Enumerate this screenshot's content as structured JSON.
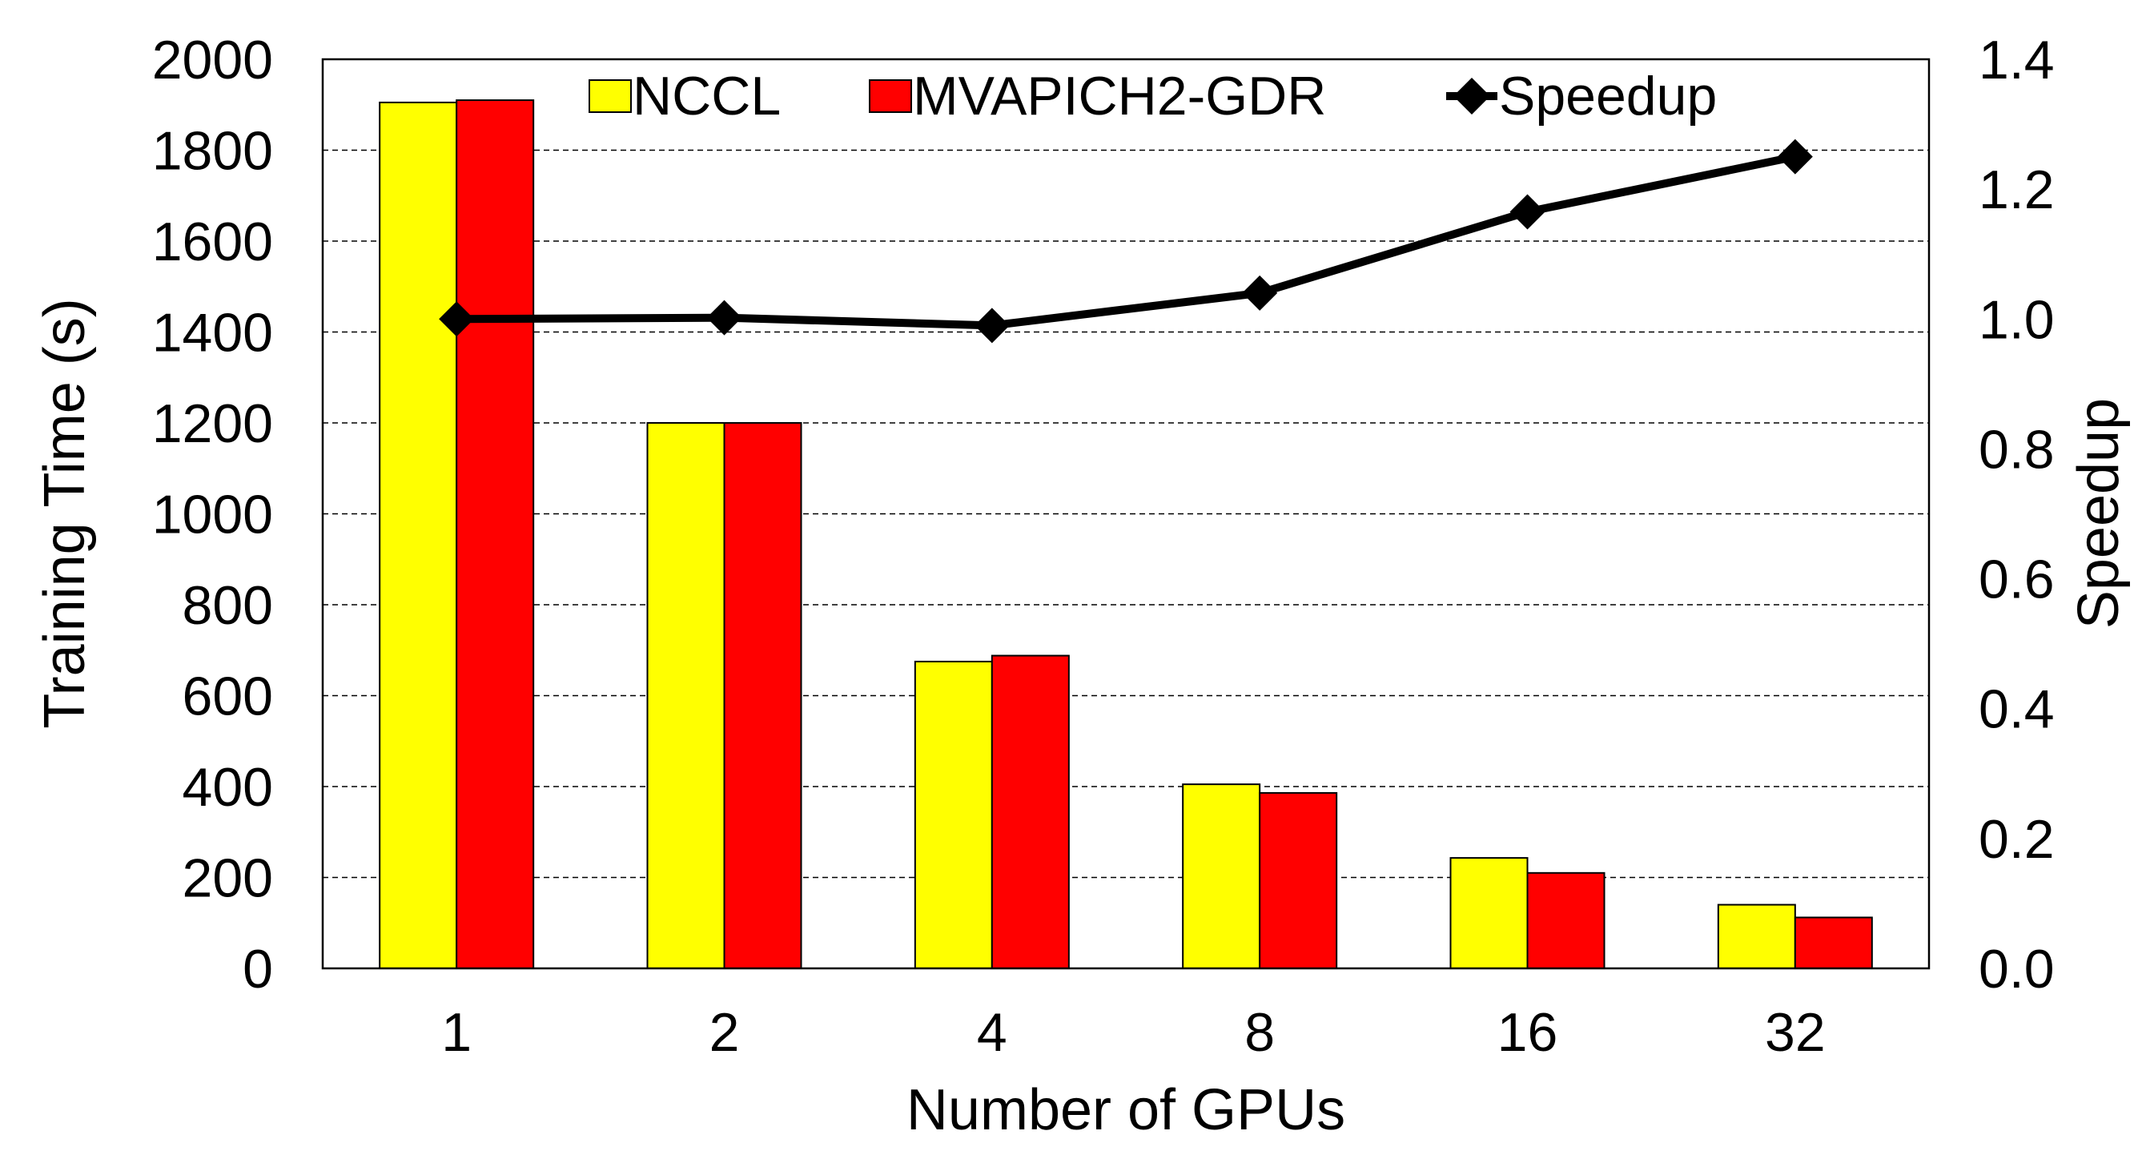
{
  "chart_data": {
    "type": "bar",
    "title": "",
    "xlabel": "Number of GPUs",
    "ylabel": "Training Time (s)",
    "y2label": "Speedup",
    "categories": [
      "1",
      "2",
      "4",
      "8",
      "16",
      "32"
    ],
    "ylim": [
      0,
      2000
    ],
    "y2lim": [
      0.0,
      1.4
    ],
    "yticks": [
      "0",
      "200",
      "400",
      "600",
      "800",
      "1000",
      "1200",
      "1400",
      "1600",
      "1800",
      "2000"
    ],
    "y2ticks": [
      "0.0",
      "0.2",
      "0.4",
      "0.6",
      "0.8",
      "1.0",
      "1.2",
      "1.4"
    ],
    "grid": true,
    "legend_position": "top",
    "series": [
      {
        "name": "NCCL",
        "type": "bar",
        "axis": "left",
        "color": "#ffff00",
        "values": [
          1905,
          1200,
          675,
          405,
          243,
          140
        ]
      },
      {
        "name": "MVAPICH2-GDR",
        "type": "bar",
        "axis": "left",
        "color": "#ff0000",
        "values": [
          1910,
          1200,
          688,
          386,
          210,
          112
        ]
      },
      {
        "name": "Speedup",
        "type": "line",
        "axis": "right",
        "color": "#000000",
        "marker": "diamond",
        "values": [
          1.0,
          1.002,
          0.99,
          1.04,
          1.165,
          1.25
        ]
      }
    ]
  }
}
